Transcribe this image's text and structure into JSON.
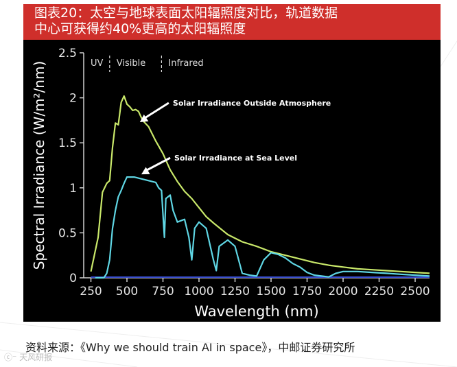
{
  "figure": {
    "title_line1": "图表20：太空与地球表面太阳辐照度对比，轨道数据",
    "title_line2": "中心可获得约40%更高的太阳辐照度",
    "source_text": "资料来源：《Why we should train AI in space》，中邮证券研究所",
    "watermark_text": "ⓒ⁻ 天风研报"
  },
  "colors": {
    "title_bg": "#cf2f2b",
    "panel_bg": "#000000",
    "outside_atmosphere": "#c9e86a",
    "sea_level": "#5fd6e4",
    "baseline": "#3a4fd0"
  },
  "chart_data": {
    "type": "line",
    "title": "",
    "xlabel": "Wavelength (nm)",
    "ylabel": "Spectral Irradiance (W/m²/nm)",
    "xlim": [
      200,
      2600
    ],
    "ylim": [
      0,
      2.5
    ],
    "x_ticks": [
      250,
      500,
      750,
      1000,
      1250,
      1500,
      1750,
      2000,
      2250,
      2500
    ],
    "y_ticks": [
      0,
      0.5,
      1,
      1.5,
      2,
      2.5
    ],
    "y_tick_labels": [
      "0",
      "0.5",
      "1",
      "1.5",
      "2",
      "2.5"
    ],
    "grid": false,
    "regions": [
      {
        "label": "UV",
        "x_end": 380
      },
      {
        "label": "Visible",
        "x_end": 740
      },
      {
        "label": "Infrared",
        "x_end": null
      }
    ],
    "annotations": [
      {
        "text": "Solar Irradiance Outside Atmosphere",
        "arrow_to": [
          590,
          1.73
        ]
      },
      {
        "text": "Solar Irradiance at Sea Level",
        "arrow_to": [
          600,
          1.15
        ]
      }
    ],
    "series": [
      {
        "name": "Solar Irradiance Outside Atmosphere",
        "x": [
          250,
          300,
          330,
          360,
          380,
          400,
          420,
          440,
          460,
          480,
          500,
          520,
          540,
          560,
          580,
          600,
          620,
          650,
          700,
          750,
          800,
          850,
          900,
          950,
          1000,
          1050,
          1100,
          1200,
          1300,
          1400,
          1500,
          1600,
          1700,
          1800,
          1900,
          2000,
          2100,
          2200,
          2300,
          2400,
          2500,
          2600
        ],
        "y": [
          0.07,
          0.45,
          0.95,
          1.05,
          1.08,
          1.45,
          1.72,
          1.7,
          1.95,
          2.02,
          1.93,
          1.9,
          1.86,
          1.87,
          1.85,
          1.78,
          1.73,
          1.68,
          1.52,
          1.38,
          1.2,
          1.07,
          0.96,
          0.88,
          0.78,
          0.68,
          0.61,
          0.48,
          0.4,
          0.35,
          0.29,
          0.25,
          0.21,
          0.17,
          0.14,
          0.12,
          0.1,
          0.09,
          0.08,
          0.07,
          0.06,
          0.05
        ]
      },
      {
        "name": "Solar Irradiance at Sea Level",
        "x": [
          280,
          300,
          320,
          340,
          360,
          380,
          400,
          420,
          440,
          460,
          480,
          500,
          550,
          600,
          650,
          700,
          720,
          740,
          760,
          770,
          800,
          820,
          850,
          900,
          930,
          950,
          970,
          1000,
          1050,
          1100,
          1120,
          1140,
          1200,
          1250,
          1300,
          1350,
          1400,
          1450,
          1500,
          1550,
          1600,
          1650,
          1700,
          1750,
          1800,
          1850,
          1900,
          1950,
          2000,
          2100,
          2200,
          2300,
          2400,
          2500,
          2600
        ],
        "y": [
          0.0,
          0.0,
          0.0,
          0.0,
          0.05,
          0.2,
          0.55,
          0.75,
          0.9,
          0.97,
          1.05,
          1.12,
          1.12,
          1.1,
          1.08,
          1.06,
          1.0,
          0.97,
          0.45,
          0.88,
          0.92,
          0.75,
          0.62,
          0.65,
          0.45,
          0.2,
          0.55,
          0.62,
          0.55,
          0.2,
          0.08,
          0.35,
          0.42,
          0.35,
          0.05,
          0.03,
          0.02,
          0.2,
          0.28,
          0.26,
          0.22,
          0.16,
          0.12,
          0.06,
          0.03,
          0.02,
          0.01,
          0.05,
          0.07,
          0.07,
          0.06,
          0.05,
          0.04,
          0.03,
          0.02
        ]
      }
    ]
  }
}
